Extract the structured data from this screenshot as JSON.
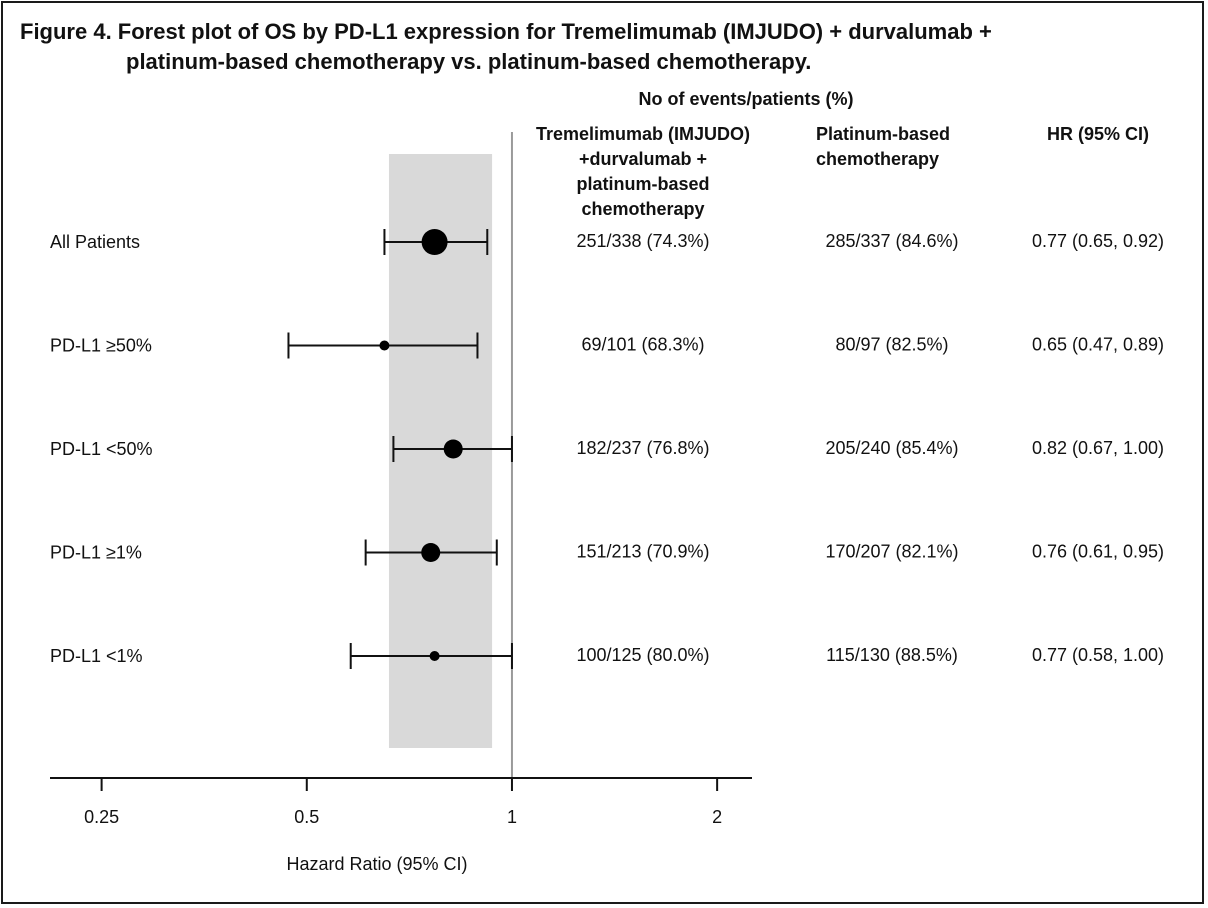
{
  "title_line1": "Figure 4. Forest plot of OS by PD-L1 expression for Tremelimumab (IMJUDO) + durvalumab +",
  "title_line2": "platinum-based chemotherapy vs. platinum-based chemotherapy.",
  "events_header": "No of events/patients (%)",
  "col_headers": {
    "treatment": [
      "Tremelimumab (IMJUDO)",
      "+durvalumab +",
      "platinum-based",
      "chemotherapy"
    ],
    "control": [
      "Platinum-based",
      "chemotherapy"
    ],
    "hr": "HR (95% CI)"
  },
  "chart_data": {
    "type": "forest",
    "xlabel": "Hazard Ratio (95% CI)",
    "x_scale": "log",
    "xlim": [
      0.21,
      2.25
    ],
    "xticks": [
      0.25,
      0.5,
      1,
      2
    ],
    "xtick_labels": [
      "0.25",
      "0.5",
      "1",
      "2"
    ],
    "reference_line": 1,
    "shaded_band": [
      0.66,
      0.935
    ],
    "rows": [
      {
        "label": "All Patients",
        "hr": 0.77,
        "lower": 0.65,
        "upper": 0.92,
        "treatment": "251/338 (74.3%)",
        "control": "285/337 (84.6%)",
        "hr_text": "0.77 (0.65, 0.92)",
        "marker": "large"
      },
      {
        "label": "PD-L1 ≥50%",
        "hr": 0.65,
        "lower": 0.47,
        "upper": 0.89,
        "treatment": "69/101 (68.3%)",
        "control": "80/97 (82.5%)",
        "hr_text": "0.65 (0.47, 0.89)",
        "marker": "small"
      },
      {
        "label": "PD-L1 <50%",
        "hr": 0.82,
        "lower": 0.67,
        "upper": 1.0,
        "treatment": "182/237 (76.8%)",
        "control": "205/240 (85.4%)",
        "hr_text": "0.82 (0.67, 1.00)",
        "marker": "medium"
      },
      {
        "label": "PD-L1 ≥1%",
        "hr": 0.76,
        "lower": 0.61,
        "upper": 0.95,
        "treatment": "151/213 (70.9%)",
        "control": "170/207 (82.1%)",
        "hr_text": "0.76 (0.61, 0.95)",
        "marker": "medium"
      },
      {
        "label": "PD-L1 <1%",
        "hr": 0.77,
        "lower": 0.58,
        "upper": 1.0,
        "treatment": "100/125 (80.0%)",
        "control": "115/130 (88.5%)",
        "hr_text": "0.77 (0.58, 1.00)",
        "marker": "small"
      }
    ]
  }
}
